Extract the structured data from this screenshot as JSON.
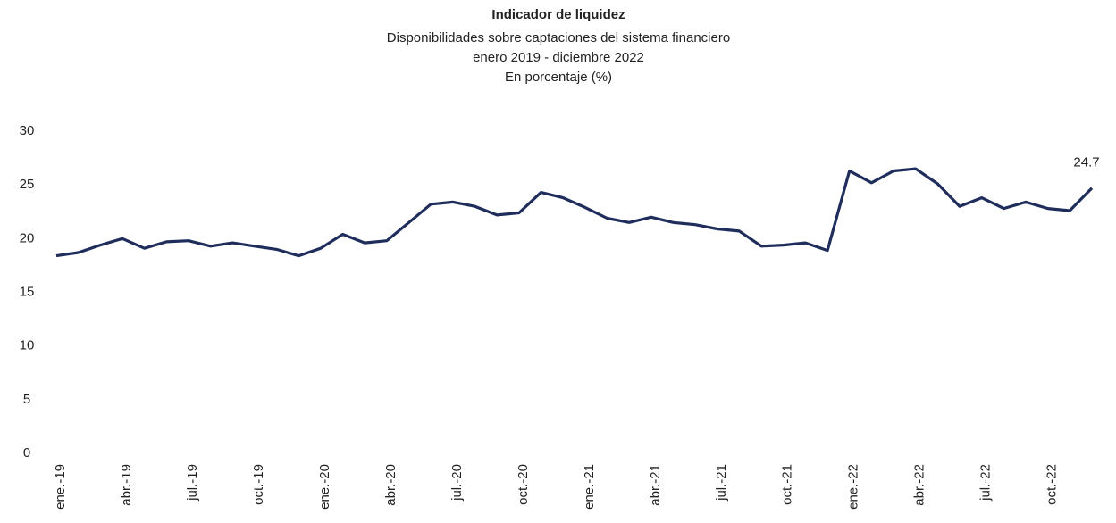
{
  "chart_data": {
    "type": "line",
    "title": "Indicador de liquidez",
    "subtitle": [
      "Disponibilidades sobre captaciones del sistema financiero",
      "enero 2019 - diciembre 2022",
      "En porcentaje (%)"
    ],
    "categories": [
      "ene.-19",
      null,
      null,
      "abr.-19",
      null,
      null,
      "jul.-19",
      null,
      null,
      "oct.-19",
      null,
      null,
      "ene.-20",
      null,
      null,
      "abr.-20",
      null,
      null,
      "jul.-20",
      null,
      null,
      "oct.-20",
      null,
      null,
      "ene.-21",
      null,
      null,
      "abr.-21",
      null,
      null,
      "jul.-21",
      null,
      null,
      "oct.-21",
      null,
      null,
      "ene.-22",
      null,
      null,
      "abr.-22",
      null,
      null,
      "jul.-22",
      null,
      null,
      "oct.-22",
      null,
      null
    ],
    "series": [
      {
        "color": "#1f2d5c",
        "values": [
          18.4,
          18.7,
          19.4,
          20.0,
          19.1,
          19.7,
          19.8,
          19.3,
          19.6,
          19.3,
          19.0,
          18.4,
          19.1,
          20.4,
          19.6,
          19.8,
          21.5,
          23.2,
          23.4,
          23.0,
          22.2,
          22.4,
          24.3,
          23.8,
          22.9,
          21.9,
          21.5,
          22.0,
          21.5,
          21.3,
          20.9,
          20.7,
          19.3,
          19.4,
          19.6,
          18.9,
          26.3,
          25.2,
          26.3,
          26.5,
          25.1,
          23.0,
          23.8,
          22.8,
          23.4,
          22.8,
          22.6,
          24.7
        ]
      }
    ],
    "ylim": [
      0,
      30
    ],
    "yticks": [
      0,
      5,
      10,
      15,
      20,
      25,
      30
    ],
    "grid": false
  }
}
